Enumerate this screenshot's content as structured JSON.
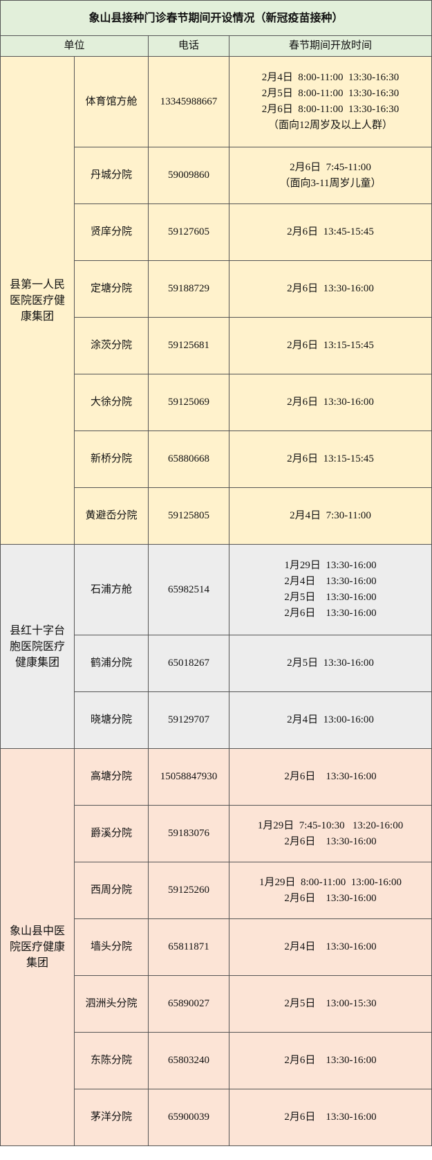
{
  "title": "象山县接种门诊春节期间开设情况（新冠疫苗接种）",
  "header": [
    "单位",
    "电话",
    "春节期间开放时间"
  ],
  "groups": [
    {
      "name": "县第一人民医院医疗健康集团",
      "rows": [
        {
          "unit": "体育馆方舱",
          "phone": "13345988667",
          "times": [
            "2月4日  8:00-11:00  13:30-16:30",
            "2月5日  8:00-11:00  13:30-16:30",
            "2月6日  8:00-11:00  13:30-16:30",
            "（面向12周岁及以上人群）"
          ]
        },
        {
          "unit": "丹城分院",
          "phone": "59009860",
          "times": [
            "2月6日  7:45-11:00",
            "（面向3-11周岁儿童）"
          ]
        },
        {
          "unit": "贤庠分院",
          "phone": "59127605",
          "times": [
            "2月6日  13:45-15:45"
          ]
        },
        {
          "unit": "定塘分院",
          "phone": "59188729",
          "times": [
            "2月6日  13:30-16:00"
          ]
        },
        {
          "unit": "涂茨分院",
          "phone": "59125681",
          "times": [
            "2月6日  13:15-15:45"
          ]
        },
        {
          "unit": "大徐分院",
          "phone": "59125069",
          "times": [
            "2月6日  13:30-16:00"
          ]
        },
        {
          "unit": "新桥分院",
          "phone": "65880668",
          "times": [
            "2月6日  13:15-15:45"
          ]
        },
        {
          "unit": "黄避岙分院",
          "phone": "59125805",
          "times": [
            "2月4日  7:30-11:00"
          ]
        }
      ]
    },
    {
      "name": "县红十字台胞医院医疗健康集团",
      "rows": [
        {
          "unit": "石浦方舱",
          "phone": "65982514",
          "times": [
            "1月29日  13:30-16:00",
            "2月4日    13:30-16:00",
            "2月5日    13:30-16:00",
            "2月6日    13:30-16:00"
          ]
        },
        {
          "unit": "鹤浦分院",
          "phone": "65018267",
          "times": [
            "2月5日  13:30-16:00"
          ]
        },
        {
          "unit": "晓塘分院",
          "phone": "59129707",
          "times": [
            "2月4日  13:00-16:00"
          ]
        }
      ]
    },
    {
      "name": "象山县中医院医疗健康集团",
      "rows": [
        {
          "unit": "高塘分院",
          "phone": "15058847930",
          "times": [
            "2月6日    13:30-16:00"
          ]
        },
        {
          "unit": "爵溪分院",
          "phone": "59183076",
          "times": [
            "1月29日  7:45-10:30   13:20-16:00",
            "2月6日    13:30-16:00"
          ]
        },
        {
          "unit": "西周分院",
          "phone": "59125260",
          "times": [
            "1月29日  8:00-11:00  13:00-16:00",
            "2月6日    13:30-16:00"
          ]
        },
        {
          "unit": "墙头分院",
          "phone": "65811871",
          "times": [
            "2月4日    13:30-16:00"
          ]
        },
        {
          "unit": "泗洲头分院",
          "phone": "65890027",
          "times": [
            "2月5日    13:00-15:30"
          ]
        },
        {
          "unit": "东陈分院",
          "phone": "65803240",
          "times": [
            "2月6日    13:30-16:00"
          ]
        },
        {
          "unit": "茅洋分院",
          "phone": "65900039",
          "times": [
            "2月6日    13:30-16:00"
          ]
        }
      ]
    }
  ]
}
